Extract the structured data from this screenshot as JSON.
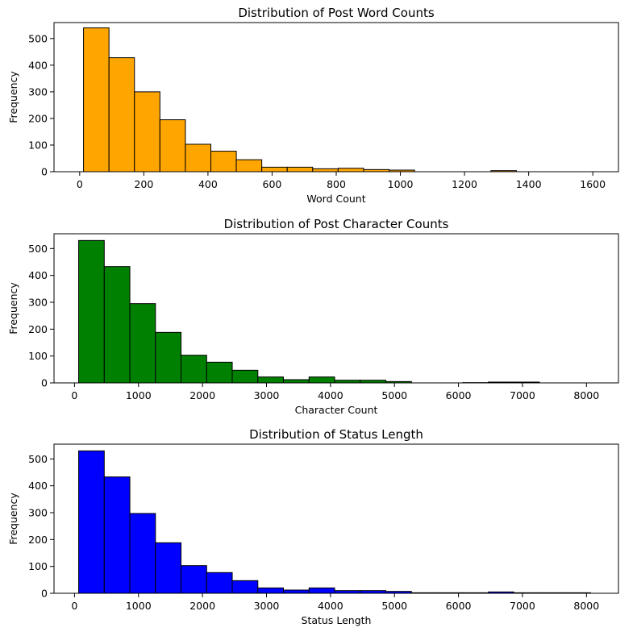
{
  "chart_data": [
    {
      "type": "bar",
      "title": "Distribution of Post Word Counts",
      "xlabel": "Word Count",
      "ylabel": "Frequency",
      "color": "#ffa500",
      "edge_color": "#000000",
      "xlim": [
        -80,
        1680
      ],
      "ylim": [
        0,
        560
      ],
      "xticks": [
        0,
        200,
        400,
        600,
        800,
        1000,
        1200,
        1400,
        1600
      ],
      "yticks": [
        0,
        100,
        200,
        300,
        400,
        500
      ],
      "bin_start": 12,
      "bin_width": 79.4,
      "values": [
        540,
        428,
        300,
        195,
        103,
        77,
        45,
        17,
        17,
        11,
        13,
        8,
        6,
        0,
        0,
        0,
        4,
        0,
        0,
        0
      ]
    },
    {
      "type": "bar",
      "title": "Distribution of Post Character Counts",
      "xlabel": "Character Count",
      "ylabel": "Frequency",
      "color": "#008000",
      "edge_color": "#000000",
      "xlim": [
        -320,
        8500
      ],
      "ylim": [
        0,
        555
      ],
      "xticks": [
        0,
        1000,
        2000,
        3000,
        4000,
        5000,
        6000,
        7000,
        8000
      ],
      "yticks": [
        0,
        100,
        200,
        300,
        400,
        500
      ],
      "bin_start": 65,
      "bin_width": 400,
      "values": [
        530,
        433,
        295,
        188,
        103,
        77,
        47,
        22,
        12,
        22,
        10,
        10,
        5,
        0,
        0,
        1,
        3,
        3,
        0,
        0
      ]
    },
    {
      "type": "bar",
      "title": "Distribution of Status Length",
      "xlabel": "Status Length",
      "ylabel": "Frequency",
      "color": "#0000ff",
      "edge_color": "#000000",
      "xlim": [
        -320,
        8500
      ],
      "ylim": [
        0,
        555
      ],
      "xticks": [
        0,
        1000,
        2000,
        3000,
        4000,
        5000,
        6000,
        7000,
        8000
      ],
      "yticks": [
        0,
        100,
        200,
        300,
        400,
        500
      ],
      "bin_start": 65,
      "bin_width": 400,
      "values": [
        530,
        433,
        297,
        188,
        103,
        77,
        47,
        20,
        12,
        20,
        10,
        10,
        7,
        2,
        2,
        2,
        5,
        2,
        2,
        2
      ]
    }
  ]
}
